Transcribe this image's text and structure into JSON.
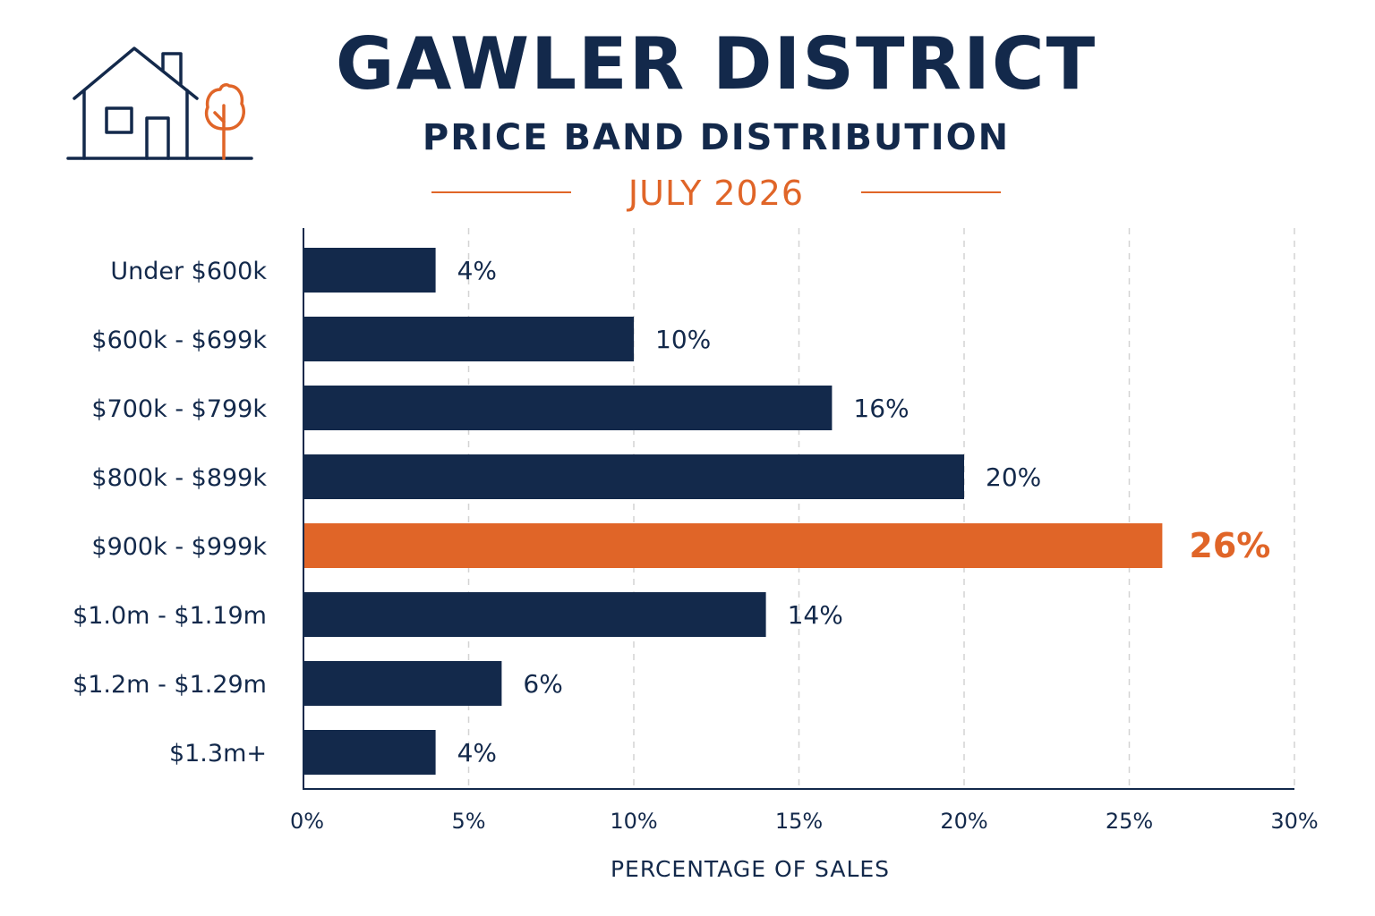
{
  "colors": {
    "primary": "#13294b",
    "accent": "#e06528",
    "grid": "#d4d4d4"
  },
  "header": {
    "title": "GAWLER DISTRICT",
    "subtitle": "PRICE BAND DISTRIBUTION",
    "date": "JULY 2026",
    "logo_icon": "house-with-tree-icon"
  },
  "chart_data": {
    "type": "bar",
    "orientation": "horizontal",
    "categories": [
      "Under $600k",
      "$600k - $699k",
      "$700k - $799k",
      "$800k - $899k",
      "$900k - $999k",
      "$1.0m - $1.19m",
      "$1.2m - $1.29m",
      "$1.3m+"
    ],
    "values": [
      4,
      10,
      16,
      20,
      26,
      14,
      6,
      4
    ],
    "value_labels": [
      "4%",
      "10%",
      "16%",
      "20%",
      "26%",
      "14%",
      "6%",
      "4%"
    ],
    "highlight_index": 4,
    "xlabel": "PERCENTAGE OF SALES",
    "xlim": [
      0,
      30
    ],
    "xticks": [
      0,
      5,
      10,
      15,
      20,
      25,
      30
    ],
    "xtick_labels": [
      "0%",
      "5%",
      "10%",
      "15%",
      "20%",
      "25%",
      "30%"
    ],
    "grid": "vertical-dashed"
  }
}
